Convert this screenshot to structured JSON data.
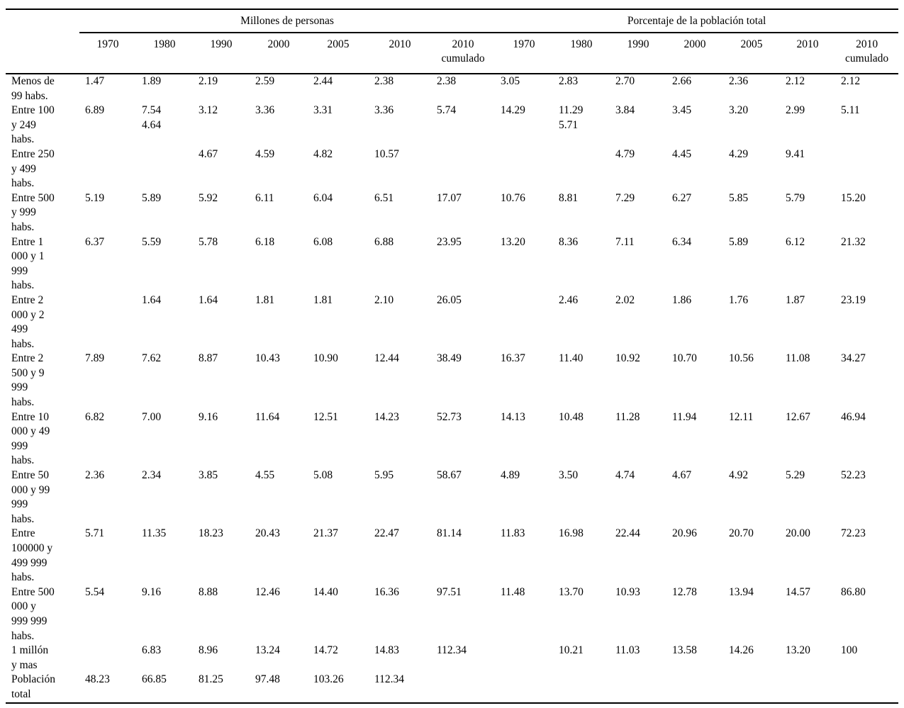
{
  "table": {
    "group_headers": [
      {
        "label": "Millones de personas",
        "span": 7
      },
      {
        "label": "Porcentaje de la población total",
        "span": 7
      }
    ],
    "year_headers": [
      "1970",
      "1980",
      "1990",
      "2000",
      "2005",
      "2010",
      "2010\ncumulado",
      "1970",
      "1980",
      "1990",
      "2000",
      "2005",
      "2010",
      "2010\ncumulado"
    ],
    "rows": [
      {
        "label": "Menos de\n99 habs.",
        "values": [
          "1.47",
          "1.89",
          "2.19",
          "2.59",
          "2.44",
          "2.38",
          "2.38",
          "3.05",
          "2.83",
          "2.70",
          "2.66",
          "2.36",
          "2.12",
          "2.12"
        ]
      },
      {
        "label": "Entre 100\ny 249\nhabs.",
        "values": [
          "6.89",
          "7.54\n4.64",
          "3.12",
          "3.36",
          "3.31",
          "3.36",
          "5.74",
          "14.29",
          "11.29\n5.71",
          "3.84",
          "3.45",
          "3.20",
          "2.99",
          "5.11"
        ]
      },
      {
        "label": "Entre 250\ny 499\nhabs.",
        "values": [
          "",
          "",
          "4.67",
          "4.59",
          "4.82",
          "10.57",
          "",
          "",
          "",
          "4.79",
          "4.45",
          "4.29",
          "9.41",
          ""
        ]
      },
      {
        "label": "Entre 500\ny 999\nhabs.",
        "values": [
          "5.19",
          "5.89",
          "5.92",
          "6.11",
          "6.04",
          "6.51",
          "17.07",
          "10.76",
          "8.81",
          "7.29",
          "6.27",
          "5.85",
          "5.79",
          "15.20"
        ]
      },
      {
        "label": "Entre 1\n000 y 1\n999\nhabs.",
        "values": [
          "6.37",
          "5.59",
          "5.78",
          "6.18",
          "6.08",
          "6.88",
          "23.95",
          "13.20",
          "8.36",
          "7.11",
          "6.34",
          "5.89",
          "6.12",
          "21.32"
        ]
      },
      {
        "label": "Entre 2\n000 y 2\n499\nhabs.",
        "values": [
          "",
          "1.64",
          "1.64",
          "1.81",
          "1.81",
          "2.10",
          "26.05",
          "",
          "2.46",
          "2.02",
          "1.86",
          "1.76",
          "1.87",
          "23.19"
        ]
      },
      {
        "label": "Entre 2\n500 y 9\n999\nhabs.",
        "values": [
          "7.89",
          "7.62",
          "8.87",
          "10.43",
          "10.90",
          "12.44",
          "38.49",
          "16.37",
          "11.40",
          "10.92",
          "10.70",
          "10.56",
          "11.08",
          "34.27"
        ]
      },
      {
        "label": "Entre 10\n000 y 49\n999\nhabs.",
        "values": [
          "6.82",
          "7.00",
          "9.16",
          "11.64",
          "12.51",
          "14.23",
          "52.73",
          "14.13",
          "10.48",
          "11.28",
          "11.94",
          "12.11",
          "12.67",
          "46.94"
        ]
      },
      {
        "label": "Entre 50\n000 y 99\n999\nhabs.",
        "values": [
          "2.36",
          "2.34",
          "3.85",
          "4.55",
          "5.08",
          "5.95",
          "58.67",
          "4.89",
          "3.50",
          "4.74",
          "4.67",
          "4.92",
          "5.29",
          "52.23"
        ]
      },
      {
        "label": "Entre\n100000 y\n499 999\nhabs.",
        "values": [
          "5.71",
          "11.35",
          "18.23",
          "20.43",
          "21.37",
          "22.47",
          "81.14",
          "11.83",
          "16.98",
          "22.44",
          "20.96",
          "20.70",
          "20.00",
          "72.23"
        ]
      },
      {
        "label": "Entre 500\n000 y\n999 999\nhabs.",
        "values": [
          "5.54",
          "9.16",
          "8.88",
          "12.46",
          "14.40",
          "16.36",
          "97.51",
          "11.48",
          "13.70",
          "10.93",
          "12.78",
          "13.94",
          "14.57",
          "86.80"
        ]
      },
      {
        "label": "1 millón\ny mas",
        "values": [
          "",
          "6.83",
          "8.96",
          "13.24",
          "14.72",
          "14.83",
          "112.34",
          "",
          "10.21",
          "11.03",
          "13.58",
          "14.26",
          "13.20",
          "100"
        ]
      },
      {
        "label": "Población\ntotal",
        "values": [
          "48.23",
          "66.85",
          "81.25",
          "97.48",
          "103.26",
          "112.34",
          "",
          "",
          "",
          "",
          "",
          "",
          "",
          ""
        ]
      }
    ]
  }
}
